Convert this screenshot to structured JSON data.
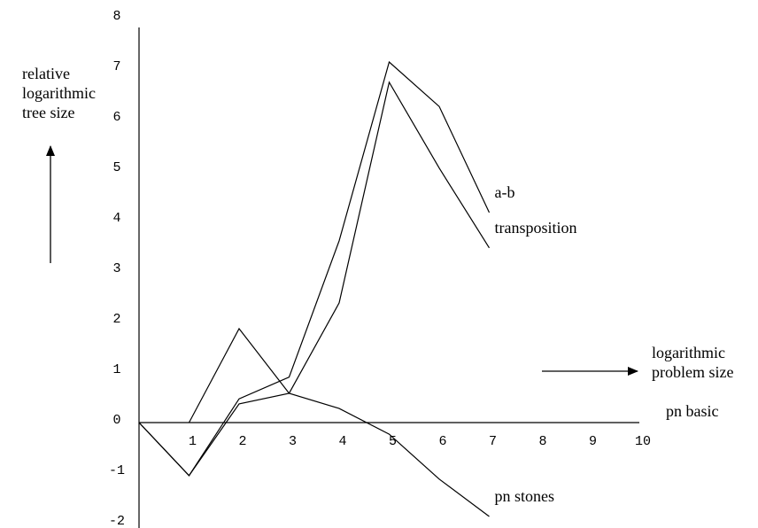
{
  "chart_data": {
    "type": "line",
    "y_label": [
      "relative",
      "logarithmic",
      "tree size"
    ],
    "x_label": [
      "logarithmic",
      "problem size"
    ],
    "annotation": "pn basic",
    "x": [
      0,
      1,
      2,
      3,
      4,
      5,
      6,
      7
    ],
    "series": [
      {
        "name": "a-b",
        "color": "#000000",
        "values": [
          0,
          -1.05,
          0.47,
          0.9,
          3.6,
          7.14,
          6.26,
          4.16
        ]
      },
      {
        "name": "transposition",
        "color": "#000000",
        "values": [
          0,
          -1.05,
          0.37,
          0.58,
          2.37,
          6.74,
          5.04,
          3.46
        ]
      },
      {
        "name": "pn stones",
        "color": "#000000",
        "values": [
          null,
          0,
          1.86,
          0.58,
          0.28,
          -0.23,
          -1.12,
          -1.86
        ]
      }
    ],
    "xlim": [
      0,
      10
    ],
    "ylim": [
      -2,
      8
    ],
    "xticks": [
      1,
      2,
      3,
      4,
      5,
      6,
      7,
      8,
      9,
      10
    ],
    "yticks": [
      -2,
      -1,
      0,
      1,
      2,
      3,
      4,
      5,
      6,
      7,
      8
    ],
    "grid": false
  }
}
